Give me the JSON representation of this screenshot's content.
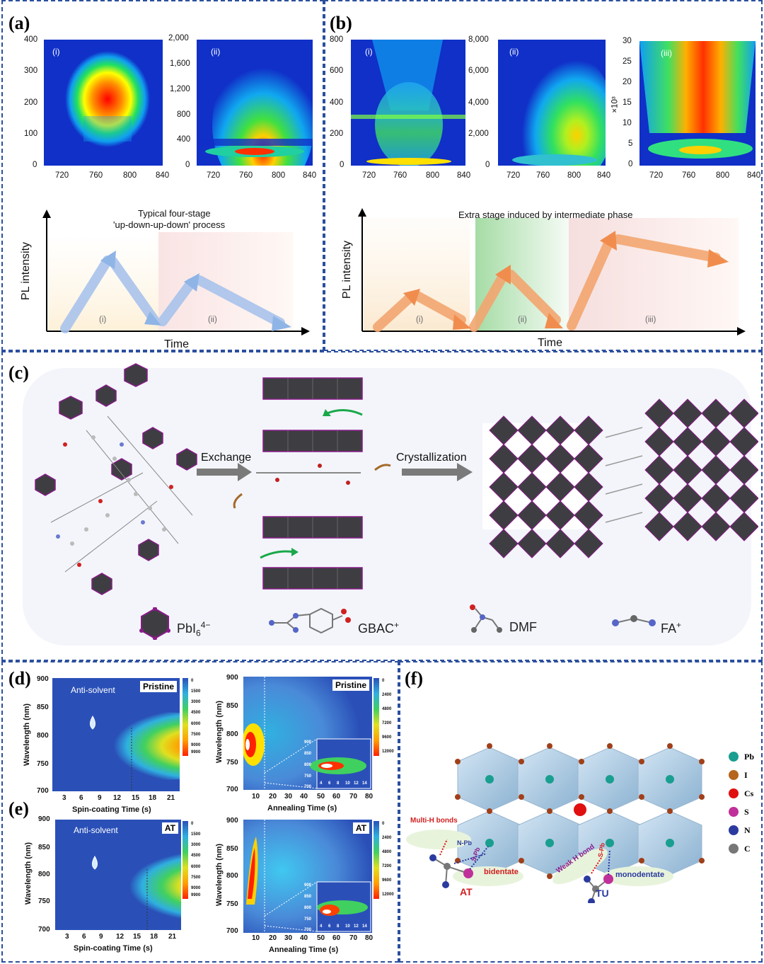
{
  "panels": {
    "a": {
      "label": "(a)",
      "heatmap_i": {
        "tag": "(i)",
        "yticks": [
          "400",
          "300",
          "200",
          "100",
          "0"
        ],
        "xticks": [
          "720",
          "760",
          "800",
          "840"
        ]
      },
      "heatmap_ii": {
        "tag": "(ii)",
        "yticks": [
          "2,000",
          "1,600",
          "1,200",
          "800",
          "400",
          "0"
        ],
        "xticks": [
          "720",
          "760",
          "800",
          "840"
        ]
      },
      "schematic": {
        "title1": "Typical four-stage",
        "title2": "'up-down-up-down' process",
        "ylabel": "PL intensity",
        "xlabel": "Time",
        "stage_i": "(i)",
        "stage_ii": "(ii)"
      }
    },
    "b": {
      "label": "(b)",
      "heatmap_i": {
        "tag": "(i)",
        "yticks": [
          "800",
          "600",
          "400",
          "200",
          "0"
        ],
        "xticks": [
          "720",
          "760",
          "800",
          "840"
        ]
      },
      "heatmap_ii": {
        "tag": "(ii)",
        "yticks": [
          "8,000",
          "6,000",
          "4,000",
          "2,000",
          "0"
        ],
        "xticks": [
          "720",
          "760",
          "800",
          "840"
        ]
      },
      "heatmap_iii": {
        "tag": "(iii)",
        "yticks": [
          "30",
          "25",
          "20",
          "15",
          "10",
          "5",
          "0"
        ],
        "xticks": [
          "720",
          "760",
          "800",
          "840"
        ],
        "scale": "×10³"
      },
      "schematic": {
        "title": "Extra stage induced by intermediate phase",
        "ylabel": "PL intensity",
        "xlabel": "Time",
        "stage_i": "(i)",
        "stage_ii": "(ii)",
        "stage_iii": "(iii)"
      }
    },
    "c": {
      "label": "(c)",
      "arrow1": "Exchange",
      "arrow2": "Crystallization",
      "legend": [
        {
          "name": "PbI6",
          "sup": "4−",
          "label": "PbI"
        },
        {
          "name": "GBAC",
          "label": "GBAC",
          "sup": "+"
        },
        {
          "name": "DMF",
          "label": "DMF"
        },
        {
          "name": "FA",
          "label": "FA",
          "sup": "+"
        }
      ]
    },
    "d": {
      "label": "(d)",
      "left": {
        "tag": "Pristine",
        "annotation": "Anti-solvent",
        "ylabel": "Wavelength (nm)",
        "xlabel": "Spin-coating Time (s)",
        "yticks": [
          "900",
          "850",
          "800",
          "750",
          "700"
        ],
        "xticks": [
          "3",
          "6",
          "9",
          "12",
          "15",
          "18",
          "21"
        ],
        "cbar": [
          "0",
          "1500",
          "3000",
          "4500",
          "6000",
          "7500",
          "9000",
          "9900"
        ]
      },
      "right": {
        "tag": "Pristine",
        "ylabel": "Wavelength (nm)",
        "xlabel": "Annealing Time (s)",
        "yticks": [
          "900",
          "850",
          "800",
          "750",
          "700"
        ],
        "xticks": [
          "10",
          "20",
          "30",
          "40",
          "50",
          "60",
          "70",
          "80"
        ],
        "cbar": [
          "0",
          "2400",
          "4800",
          "7200",
          "9600",
          "12000"
        ],
        "inset_y": [
          "900",
          "850",
          "800",
          "750",
          "700"
        ],
        "inset_x": [
          "4",
          "6",
          "8",
          "10",
          "12",
          "14"
        ]
      }
    },
    "e": {
      "label": "(e)",
      "left": {
        "tag": "AT",
        "annotation": "Anti-solvent",
        "ylabel": "Wavelength (nm)",
        "xlabel": "Spin-coating Time (s)",
        "yticks": [
          "900",
          "850",
          "800",
          "750",
          "700"
        ],
        "xticks": [
          "3",
          "6",
          "9",
          "12",
          "15",
          "18",
          "21"
        ],
        "cbar": [
          "0",
          "1500",
          "3000",
          "4500",
          "6000",
          "7500",
          "9000",
          "9900"
        ]
      },
      "right": {
        "tag": "AT",
        "ylabel": "Wavelength (nm)",
        "xlabel": "Annealing Time (s)",
        "yticks": [
          "900",
          "850",
          "800",
          "750",
          "700"
        ],
        "xticks": [
          "10",
          "20",
          "30",
          "40",
          "50",
          "60",
          "70",
          "80"
        ],
        "cbar": [
          "0",
          "2400",
          "4800",
          "7200",
          "9600",
          "12000"
        ],
        "inset_y": [
          "900",
          "850",
          "800",
          "750",
          "700"
        ],
        "inset_x": [
          "4",
          "6",
          "8",
          "10",
          "12",
          "14"
        ]
      }
    },
    "f": {
      "label": "(f)",
      "legend": [
        "Pb",
        "I",
        "Cs",
        "S",
        "N",
        "C"
      ],
      "colors": [
        "#1a9e8f",
        "#b5651d",
        "#e01010",
        "#c0309a",
        "#2a3a9e",
        "#777777"
      ],
      "annotations": {
        "multi_h": "Multi-H bonds",
        "npb": "N-Pb",
        "spb_left": "S-Pb",
        "bidentate": "bidentate",
        "at": "AT",
        "weak_h": "Weak H bond",
        "spb_right": "S-Pb",
        "monodentate": "monodentate",
        "tu": "TU"
      }
    }
  }
}
